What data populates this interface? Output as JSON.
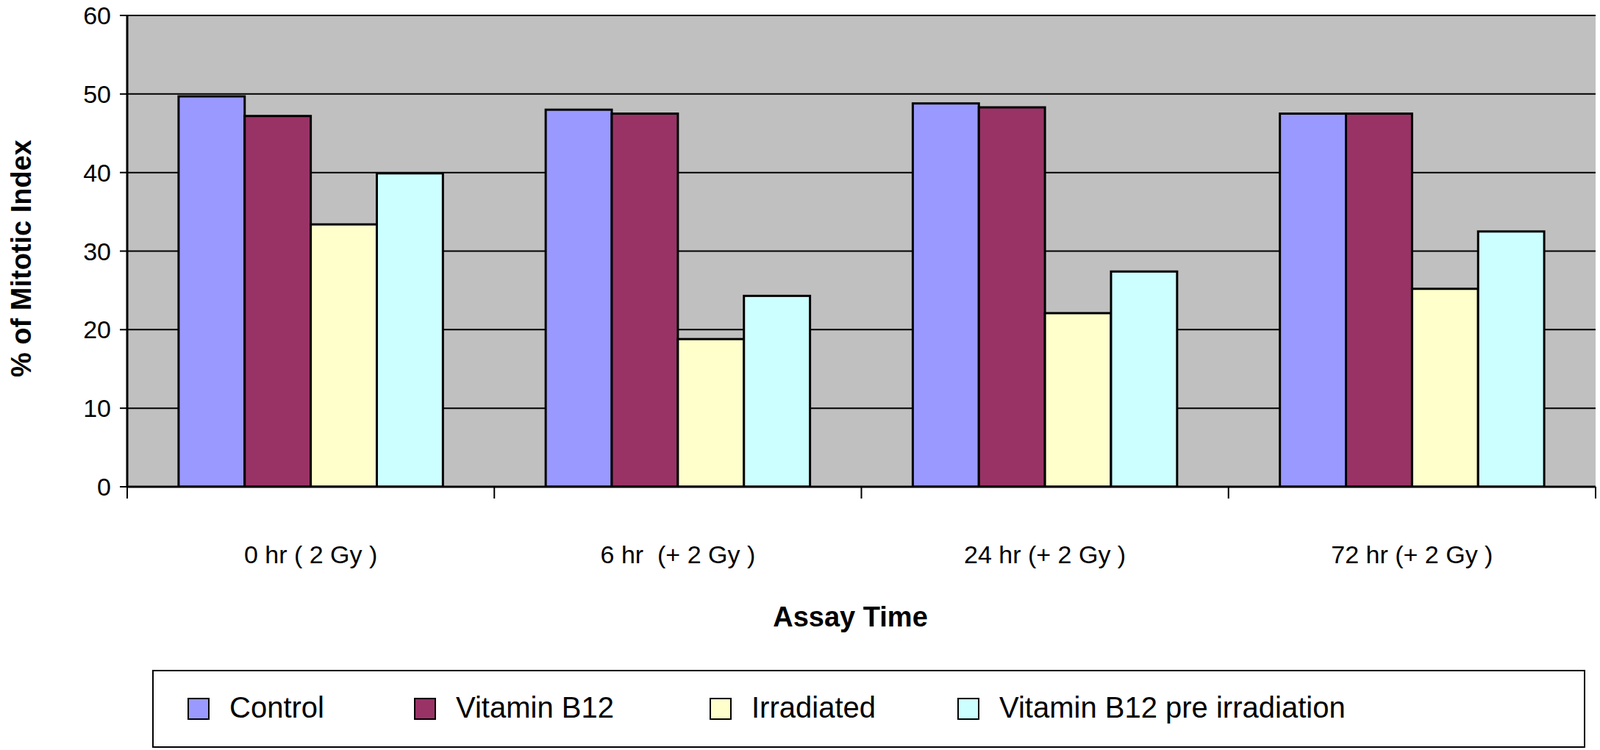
{
  "chart_data": {
    "type": "bar",
    "categories": [
      "0 hr ( 2 Gy )",
      "6 hr  (+ 2 Gy )",
      "24 hr (+ 2 Gy )",
      "72 hr (+ 2 Gy )"
    ],
    "series": [
      {
        "name": "Control",
        "color": "#9999ff",
        "values": [
          49.7,
          48.0,
          48.8,
          47.5
        ]
      },
      {
        "name": "Vitamin B12",
        "color": "#993366",
        "values": [
          47.2,
          47.5,
          48.3,
          47.5
        ]
      },
      {
        "name": "Irradiated",
        "color": "#ffffcc",
        "values": [
          33.4,
          18.8,
          22.1,
          25.2
        ]
      },
      {
        "name": "Vitamin B12 pre irradiation",
        "color": "#ccffff",
        "values": [
          39.9,
          24.3,
          27.4,
          32.5
        ]
      }
    ],
    "x_label": "Assay Time",
    "y_label": "% of Mitotic Index",
    "ylim": [
      0,
      60
    ],
    "yticks": [
      0,
      10,
      20,
      30,
      40,
      50,
      60
    ],
    "grid": true,
    "legend": "bottom"
  }
}
